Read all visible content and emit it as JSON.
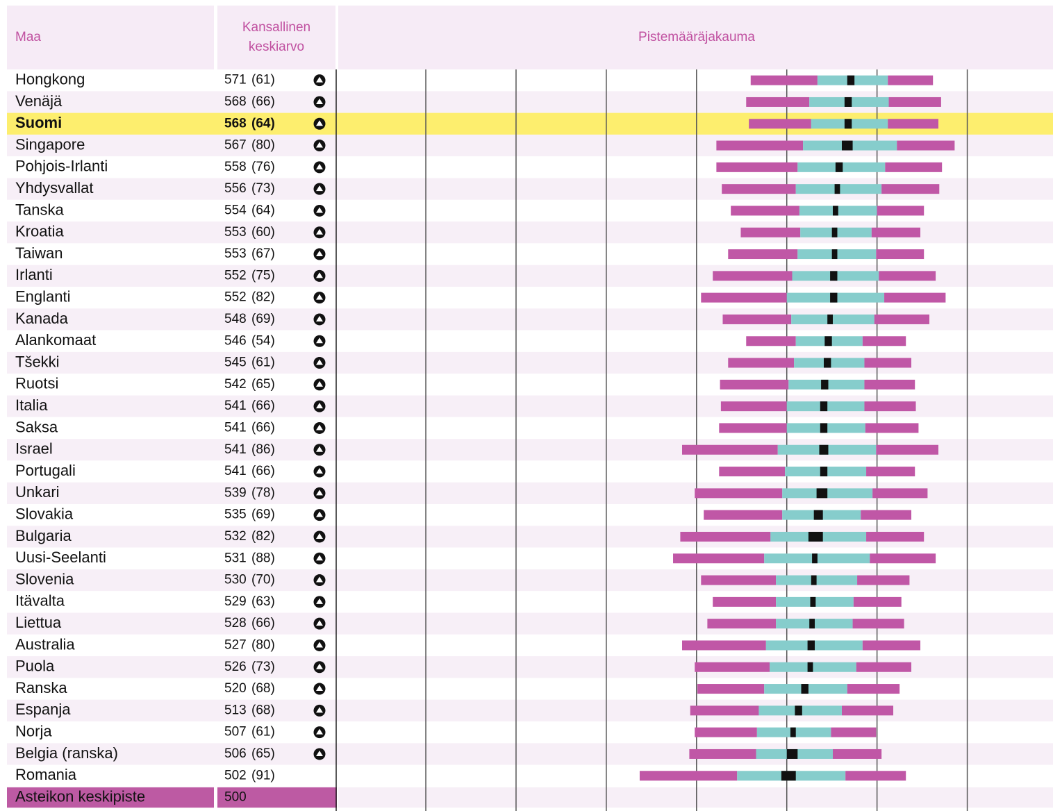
{
  "chart_data": {
    "type": "percentile",
    "headers": {
      "country": "Maa",
      "mean": [
        "Kansallinen",
        "keskiarvo"
      ],
      "distribution": "Pistemääräjakauma"
    },
    "categories": [
      "Hongkong",
      "Venäjä",
      "Suomi",
      "Singapore",
      "Pohjois-Irlanti",
      "Yhdysvallat",
      "Tanska",
      "Kroatia",
      "Taiwan",
      "Irlanti",
      "Englanti",
      "Kanada",
      "Alankomaat",
      "Tšekki",
      "Ruotsi",
      "Italia",
      "Saksa",
      "Israel",
      "Portugali",
      "Unkari",
      "Slovakia",
      "Bulgaria",
      "Uusi-Seelanti",
      "Slovenia",
      "Itävalta",
      "Liettua",
      "Australia",
      "Puola",
      "Ranska",
      "Espanja",
      "Norja",
      "Belgia (ranska)",
      "Romania"
    ],
    "means": [
      571,
      568,
      568,
      567,
      558,
      556,
      554,
      553,
      553,
      552,
      552,
      548,
      546,
      545,
      542,
      541,
      541,
      541,
      541,
      539,
      535,
      532,
      531,
      530,
      529,
      528,
      527,
      526,
      520,
      513,
      507,
      506,
      502
    ],
    "sd_labels": [
      "(61)",
      "(66)",
      "(64)",
      "(80)",
      "(76)",
      "(73)",
      "(64)",
      "(60)",
      "(67)",
      "(75)",
      "(82)",
      "(69)",
      "(54)",
      "(61)",
      "(65)",
      "(66)",
      "(66)",
      "(86)",
      "(66)",
      "(78)",
      "(69)",
      "(82)",
      "(88)",
      "(70)",
      "(63)",
      "(66)",
      "(80)",
      "(73)",
      "(68)",
      "(68)",
      "(61)",
      "(65)",
      "(91)"
    ],
    "above_midpoint": [
      true,
      true,
      true,
      true,
      true,
      true,
      true,
      true,
      true,
      true,
      true,
      true,
      true,
      true,
      true,
      true,
      true,
      true,
      true,
      true,
      true,
      true,
      true,
      true,
      true,
      true,
      true,
      true,
      true,
      true,
      true,
      true,
      false
    ],
    "highlight": "Suomi",
    "p5": [
      460,
      455,
      458,
      422,
      422,
      428,
      438,
      449,
      435,
      418,
      405,
      429,
      455,
      435,
      426,
      427,
      425,
      384,
      425,
      398,
      408,
      382,
      374,
      405,
      418,
      412,
      384,
      398,
      401,
      393,
      398,
      392,
      337
    ],
    "p25": [
      534,
      525,
      527,
      518,
      512,
      510,
      514,
      515,
      512,
      506,
      500,
      505,
      510,
      508,
      502,
      500,
      500,
      490,
      498,
      495,
      495,
      482,
      475,
      488,
      488,
      488,
      477,
      481,
      475,
      469,
      467,
      466,
      445
    ],
    "p75": [
      612,
      613,
      612,
      622,
      609,
      605,
      600,
      594,
      599,
      602,
      608,
      597,
      584,
      586,
      586,
      586,
      587,
      599,
      588,
      595,
      582,
      588,
      592,
      578,
      574,
      573,
      584,
      577,
      567,
      561,
      549,
      551,
      565
    ],
    "p95": [
      662,
      671,
      668,
      686,
      672,
      669,
      652,
      648,
      652,
      665,
      676,
      658,
      632,
      638,
      642,
      643,
      646,
      668,
      642,
      656,
      638,
      652,
      665,
      636,
      627,
      630,
      648,
      638,
      625,
      618,
      599,
      605,
      632
    ],
    "ci": [
      4,
      4,
      4,
      6,
      4,
      3,
      3,
      3,
      3,
      4,
      4,
      3,
      4,
      4,
      4,
      4,
      4,
      5,
      4,
      6,
      5,
      8,
      3,
      3,
      3,
      3,
      4,
      3,
      4,
      4,
      3,
      6,
      8
    ],
    "footer": {
      "label": "Asteikon keskipiste",
      "value": 500
    },
    "xlim": [
      3,
      795
    ],
    "xticks": [
      100,
      200,
      300,
      400,
      500,
      600,
      700
    ],
    "colors": {
      "outer": "#c057a6",
      "inner": "#86cdcc",
      "mean": "#111111",
      "header_text": "#c050a0",
      "header_bg": "#f6ebf6",
      "stripe": "#f7eff7",
      "highlight_bg": "#fdee6e",
      "footer_bg": "#bd5aa3"
    }
  }
}
